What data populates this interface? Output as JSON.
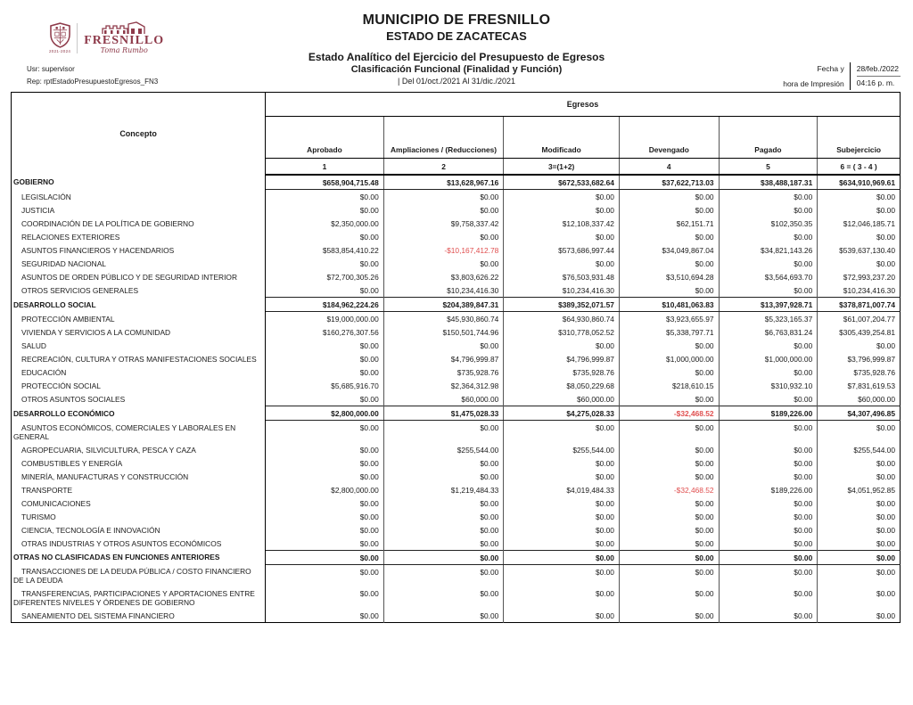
{
  "page": {
    "org_title": "MUNICIPIO DE FRESNILLO",
    "org_subtitle": "ESTADO DE ZACATECAS",
    "report_title": "Estado Analítico del Ejercicio del Presupuesto de Egresos",
    "report_classification": "Clasificación Funcional (Finalidad y Función)",
    "report_period": "| Del 01/oct./2021 Al 31/dic./2021",
    "user_line": "Usr: supervisor",
    "report_line": "Rep: rptEstadoPresupuestoEgresos_FN3",
    "print_label_top": "Fecha y",
    "print_label_bottom": "hora de Impresión",
    "print_date": "28/feb./2022",
    "print_time": "04:16 p. m."
  },
  "logo": {
    "name": "FRESNILLO",
    "tagline": "Toma Rumbo",
    "term": "2021-2024",
    "brand_color": "#8e3a4a"
  },
  "colors": {
    "negative": "#e04f4f",
    "text": "#1a1a1a"
  },
  "table": {
    "concept_header": "Concepto",
    "group_header": "Egresos",
    "columns": [
      "Aprobado",
      "Ampliaciones / (Reducciones)",
      "Modificado",
      "Devengado",
      "Pagado",
      "Subejercicio"
    ],
    "column_numbers": [
      "1",
      "2",
      "3=(1+2)",
      "4",
      "5",
      "6 = ( 3 - 4 )"
    ],
    "rows": [
      {
        "type": "section",
        "label": "GOBIERNO",
        "values": [
          "$658,904,715.48",
          "$13,628,967.16",
          "$672,533,682.64",
          "$37,622,713.03",
          "$38,488,187.31",
          "$634,910,969.61"
        ]
      },
      {
        "type": "item",
        "label": "LEGISLACIÓN",
        "values": [
          "$0.00",
          "$0.00",
          "$0.00",
          "$0.00",
          "$0.00",
          "$0.00"
        ]
      },
      {
        "type": "item",
        "label": "JUSTICIA",
        "values": [
          "$0.00",
          "$0.00",
          "$0.00",
          "$0.00",
          "$0.00",
          "$0.00"
        ]
      },
      {
        "type": "item",
        "label": "COORDINACIÓN DE LA POLÍTICA DE GOBIERNO",
        "values": [
          "$2,350,000.00",
          "$9,758,337.42",
          "$12,108,337.42",
          "$62,151.71",
          "$102,350.35",
          "$12,046,185.71"
        ]
      },
      {
        "type": "item",
        "label": "RELACIONES EXTERIORES",
        "values": [
          "$0.00",
          "$0.00",
          "$0.00",
          "$0.00",
          "$0.00",
          "$0.00"
        ]
      },
      {
        "type": "item",
        "label": "ASUNTOS FINANCIEROS Y HACENDARIOS",
        "values": [
          "$583,854,410.22",
          "-$10,167,412.78",
          "$573,686,997.44",
          "$34,049,867.04",
          "$34,821,143.26",
          "$539,637,130.40"
        ]
      },
      {
        "type": "item",
        "label": "SEGURIDAD NACIONAL",
        "values": [
          "$0.00",
          "$0.00",
          "$0.00",
          "$0.00",
          "$0.00",
          "$0.00"
        ]
      },
      {
        "type": "item",
        "label": "ASUNTOS DE ORDEN PÚBLICO Y DE SEGURIDAD INTERIOR",
        "values": [
          "$72,700,305.26",
          "$3,803,626.22",
          "$76,503,931.48",
          "$3,510,694.28",
          "$3,564,693.70",
          "$72,993,237.20"
        ]
      },
      {
        "type": "item",
        "label": "OTROS SERVICIOS GENERALES",
        "values": [
          "$0.00",
          "$10,234,416.30",
          "$10,234,416.30",
          "$0.00",
          "$0.00",
          "$10,234,416.30"
        ]
      },
      {
        "type": "section",
        "label": "DESARROLLO SOCIAL",
        "values": [
          "$184,962,224.26",
          "$204,389,847.31",
          "$389,352,071.57",
          "$10,481,063.83",
          "$13,397,928.71",
          "$378,871,007.74"
        ]
      },
      {
        "type": "item",
        "label": "PROTECCIÓN AMBIENTAL",
        "values": [
          "$19,000,000.00",
          "$45,930,860.74",
          "$64,930,860.74",
          "$3,923,655.97",
          "$5,323,165.37",
          "$61,007,204.77"
        ]
      },
      {
        "type": "item",
        "label": "VIVIENDA Y SERVICIOS  A LA COMUNIDAD",
        "values": [
          "$160,276,307.56",
          "$150,501,744.96",
          "$310,778,052.52",
          "$5,338,797.71",
          "$6,763,831.24",
          "$305,439,254.81"
        ]
      },
      {
        "type": "item",
        "label": "SALUD",
        "values": [
          "$0.00",
          "$0.00",
          "$0.00",
          "$0.00",
          "$0.00",
          "$0.00"
        ]
      },
      {
        "type": "item",
        "label": "RECREACIÓN, CULTURA Y OTRAS MANIFESTACIONES SOCIALES",
        "values": [
          "$0.00",
          "$4,796,999.87",
          "$4,796,999.87",
          "$1,000,000.00",
          "$1,000,000.00",
          "$3,796,999.87"
        ]
      },
      {
        "type": "item",
        "label": "EDUCACIÓN",
        "values": [
          "$0.00",
          "$735,928.76",
          "$735,928.76",
          "$0.00",
          "$0.00",
          "$735,928.76"
        ]
      },
      {
        "type": "item",
        "label": "PROTECCIÓN SOCIAL",
        "values": [
          "$5,685,916.70",
          "$2,364,312.98",
          "$8,050,229.68",
          "$218,610.15",
          "$310,932.10",
          "$7,831,619.53"
        ]
      },
      {
        "type": "item",
        "label": "OTROS ASUNTOS SOCIALES",
        "values": [
          "$0.00",
          "$60,000.00",
          "$60,000.00",
          "$0.00",
          "$0.00",
          "$60,000.00"
        ]
      },
      {
        "type": "section",
        "label": "DESARROLLO ECONÓMICO",
        "values": [
          "$2,800,000.00",
          "$1,475,028.33",
          "$4,275,028.33",
          "-$32,468.52",
          "$189,226.00",
          "$4,307,496.85"
        ]
      },
      {
        "type": "item",
        "label": "ASUNTOS ECONÓMICOS, COMERCIALES Y LABORALES EN GENERAL",
        "values": [
          "$0.00",
          "$0.00",
          "$0.00",
          "$0.00",
          "$0.00",
          "$0.00"
        ]
      },
      {
        "type": "item",
        "label": "AGROPECUARIA, SILVICULTURA, PESCA Y CAZA",
        "values": [
          "$0.00",
          "$255,544.00",
          "$255,544.00",
          "$0.00",
          "$0.00",
          "$255,544.00"
        ]
      },
      {
        "type": "item",
        "label": "COMBUSTIBLES Y ENERGÍA",
        "values": [
          "$0.00",
          "$0.00",
          "$0.00",
          "$0.00",
          "$0.00",
          "$0.00"
        ]
      },
      {
        "type": "item",
        "label": "MINERÍA, MANUFACTURAS Y CONSTRUCCIÓN",
        "values": [
          "$0.00",
          "$0.00",
          "$0.00",
          "$0.00",
          "$0.00",
          "$0.00"
        ]
      },
      {
        "type": "item",
        "label": "TRANSPORTE",
        "values": [
          "$2,800,000.00",
          "$1,219,484.33",
          "$4,019,484.33",
          "-$32,468.52",
          "$189,226.00",
          "$4,051,952.85"
        ]
      },
      {
        "type": "item",
        "label": "COMUNICACIONES",
        "values": [
          "$0.00",
          "$0.00",
          "$0.00",
          "$0.00",
          "$0.00",
          "$0.00"
        ]
      },
      {
        "type": "item",
        "label": "TURISMO",
        "values": [
          "$0.00",
          "$0.00",
          "$0.00",
          "$0.00",
          "$0.00",
          "$0.00"
        ]
      },
      {
        "type": "item",
        "label": "CIENCIA, TECNOLOGÍA E INNOVACIÓN",
        "values": [
          "$0.00",
          "$0.00",
          "$0.00",
          "$0.00",
          "$0.00",
          "$0.00"
        ]
      },
      {
        "type": "item",
        "label": "OTRAS INDUSTRIAS Y OTROS ASUNTOS ECONÓMICOS",
        "values": [
          "$0.00",
          "$0.00",
          "$0.00",
          "$0.00",
          "$0.00",
          "$0.00"
        ]
      },
      {
        "type": "section",
        "label": "OTRAS NO CLASIFICADAS EN FUNCIONES ANTERIORES",
        "values": [
          "$0.00",
          "$0.00",
          "$0.00",
          "$0.00",
          "$0.00",
          "$0.00"
        ]
      },
      {
        "type": "item",
        "label": "TRANSACCIONES DE LA DEUDA PÚBLICA / COSTO FINANCIERO DE LA DEUDA",
        "values": [
          "$0.00",
          "$0.00",
          "$0.00",
          "$0.00",
          "$0.00",
          "$0.00"
        ]
      },
      {
        "type": "item",
        "label": "TRANSFERENCIAS, PARTICIPACIONES Y APORTACIONES ENTRE DIFERENTES NIVELES Y ÓRDENES DE GOBIERNO",
        "values": [
          "$0.00",
          "$0.00",
          "$0.00",
          "$0.00",
          "$0.00",
          "$0.00"
        ]
      },
      {
        "type": "item",
        "label": "SANEAMIENTO DEL SISTEMA FINANCIERO",
        "values": [
          "$0.00",
          "$0.00",
          "$0.00",
          "$0.00",
          "$0.00",
          "$0.00"
        ]
      }
    ]
  }
}
